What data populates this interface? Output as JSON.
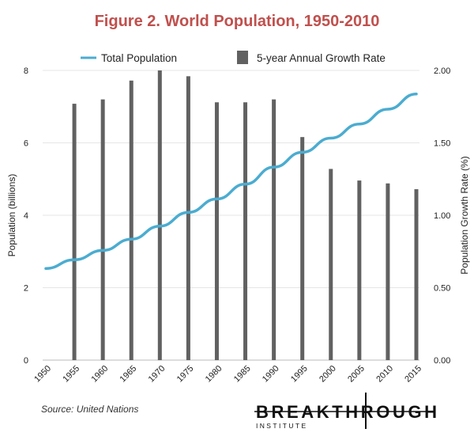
{
  "title": "Figure 2. World Population, 1950-2010",
  "colors": {
    "title": "#c0504d",
    "line": "#4bacd0",
    "bar": "#616161",
    "grid": "#e6e6e6"
  },
  "source": "Source: United Nations",
  "logo": {
    "main": "BREAKTHROUGH",
    "sub": "INSTITUTE"
  },
  "chart_data": {
    "type": "bar+line",
    "categories": [
      "1950",
      "1955",
      "1960",
      "1965",
      "1970",
      "1975",
      "1980",
      "1985",
      "1990",
      "1995",
      "2000",
      "2005",
      "2010",
      "2015"
    ],
    "series": [
      {
        "name": "Total Population",
        "type": "line",
        "axis": "left",
        "values": [
          2.53,
          2.77,
          3.03,
          3.34,
          3.7,
          4.08,
          4.45,
          4.86,
          5.33,
          5.74,
          6.13,
          6.52,
          6.93,
          7.35
        ]
      },
      {
        "name": "5-year Annual Growth Rate",
        "type": "bar",
        "axis": "right",
        "values": [
          null,
          1.77,
          1.8,
          1.93,
          2.0,
          1.96,
          1.78,
          1.78,
          1.8,
          1.54,
          1.32,
          1.24,
          1.22,
          1.18
        ]
      }
    ],
    "ylabel_left": "Population (billions)",
    "ylabel_right": "Population Growth Rate (%)",
    "ylim_left": [
      0,
      8
    ],
    "ylim_right": [
      0,
      2
    ],
    "yticks_left": [
      "0",
      "2",
      "4",
      "6",
      "8"
    ],
    "yticks_right": [
      "0.00",
      "0.50",
      "1.00",
      "1.50",
      "2.00"
    ],
    "grid": true,
    "legend_position": "top"
  }
}
